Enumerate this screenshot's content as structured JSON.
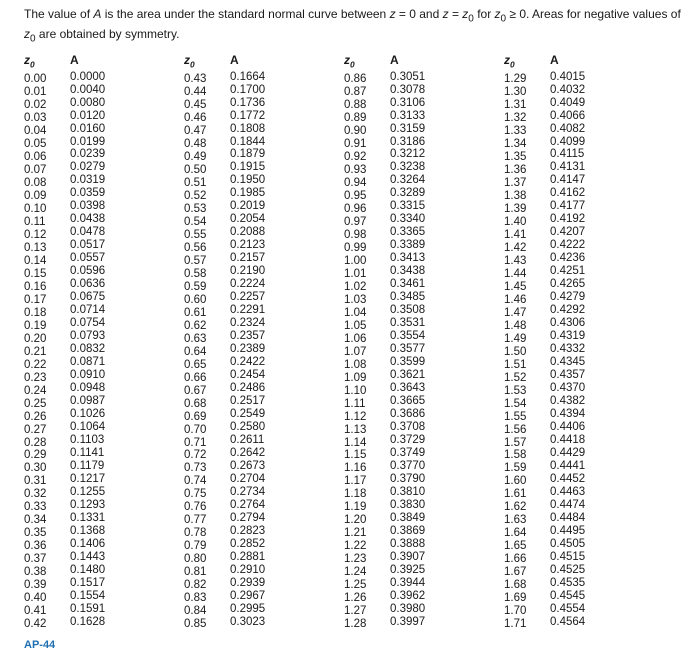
{
  "caption_html": "The value of <i>A</i> is the area under the standard normal curve between <i>z</i> = 0 and <i>z</i> = <i>z</i><sub>0</sub> for <i>z</i><sub>0</sub> ≥ 0. Areas for negative values of <i>z</i><sub>0</sub> are obtained by symmetry.",
  "header_z_html": "z<sub style=\"font-size:70%\">0</sub>",
  "header_A": "A",
  "footer": "AP-44",
  "columns": [
    [
      [
        "0.00",
        "0.0000"
      ],
      [
        "0.01",
        "0.0040"
      ],
      [
        "0.02",
        "0.0080"
      ],
      [
        "0.03",
        "0.0120"
      ],
      [
        "0.04",
        "0.0160"
      ],
      [
        "0.05",
        "0.0199"
      ],
      [
        "0.06",
        "0.0239"
      ],
      [
        "0.07",
        "0.0279"
      ],
      [
        "0.08",
        "0.0319"
      ],
      [
        "0.09",
        "0.0359"
      ],
      [
        "0.10",
        "0.0398"
      ],
      [
        "0.11",
        "0.0438"
      ],
      [
        "0.12",
        "0.0478"
      ],
      [
        "0.13",
        "0.0517"
      ],
      [
        "0.14",
        "0.0557"
      ],
      [
        "0.15",
        "0.0596"
      ],
      [
        "0.16",
        "0.0636"
      ],
      [
        "0.17",
        "0.0675"
      ],
      [
        "0.18",
        "0.0714"
      ],
      [
        "0.19",
        "0.0754"
      ],
      [
        "0.20",
        "0.0793"
      ],
      [
        "0.21",
        "0.0832"
      ],
      [
        "0.22",
        "0.0871"
      ],
      [
        "0.23",
        "0.0910"
      ],
      [
        "0.24",
        "0.0948"
      ],
      [
        "0.25",
        "0.0987"
      ],
      [
        "0.26",
        "0.1026"
      ],
      [
        "0.27",
        "0.1064"
      ],
      [
        "0.28",
        "0.1103"
      ],
      [
        "0.29",
        "0.1141"
      ],
      [
        "0.30",
        "0.1179"
      ],
      [
        "0.31",
        "0.1217"
      ],
      [
        "0.32",
        "0.1255"
      ],
      [
        "0.33",
        "0.1293"
      ],
      [
        "0.34",
        "0.1331"
      ],
      [
        "0.35",
        "0.1368"
      ],
      [
        "0.36",
        "0.1406"
      ],
      [
        "0.37",
        "0.1443"
      ],
      [
        "0.38",
        "0.1480"
      ],
      [
        "0.39",
        "0.1517"
      ],
      [
        "0.40",
        "0.1554"
      ],
      [
        "0.41",
        "0.1591"
      ],
      [
        "0.42",
        "0.1628"
      ]
    ],
    [
      [
        "0.43",
        "0.1664"
      ],
      [
        "0.44",
        "0.1700"
      ],
      [
        "0.45",
        "0.1736"
      ],
      [
        "0.46",
        "0.1772"
      ],
      [
        "0.47",
        "0.1808"
      ],
      [
        "0.48",
        "0.1844"
      ],
      [
        "0.49",
        "0.1879"
      ],
      [
        "0.50",
        "0.1915"
      ],
      [
        "0.51",
        "0.1950"
      ],
      [
        "0.52",
        "0.1985"
      ],
      [
        "0.53",
        "0.2019"
      ],
      [
        "0.54",
        "0.2054"
      ],
      [
        "0.55",
        "0.2088"
      ],
      [
        "0.56",
        "0.2123"
      ],
      [
        "0.57",
        "0.2157"
      ],
      [
        "0.58",
        "0.2190"
      ],
      [
        "0.59",
        "0.2224"
      ],
      [
        "0.60",
        "0.2257"
      ],
      [
        "0.61",
        "0.2291"
      ],
      [
        "0.62",
        "0.2324"
      ],
      [
        "0.63",
        "0.2357"
      ],
      [
        "0.64",
        "0.2389"
      ],
      [
        "0.65",
        "0.2422"
      ],
      [
        "0.66",
        "0.2454"
      ],
      [
        "0.67",
        "0.2486"
      ],
      [
        "0.68",
        "0.2517"
      ],
      [
        "0.69",
        "0.2549"
      ],
      [
        "0.70",
        "0.2580"
      ],
      [
        "0.71",
        "0.2611"
      ],
      [
        "0.72",
        "0.2642"
      ],
      [
        "0.73",
        "0.2673"
      ],
      [
        "0.74",
        "0.2704"
      ],
      [
        "0.75",
        "0.2734"
      ],
      [
        "0.76",
        "0.2764"
      ],
      [
        "0.77",
        "0.2794"
      ],
      [
        "0.78",
        "0.2823"
      ],
      [
        "0.79",
        "0.2852"
      ],
      [
        "0.80",
        "0.2881"
      ],
      [
        "0.81",
        "0.2910"
      ],
      [
        "0.82",
        "0.2939"
      ],
      [
        "0.83",
        "0.2967"
      ],
      [
        "0.84",
        "0.2995"
      ],
      [
        "0.85",
        "0.3023"
      ]
    ],
    [
      [
        "0.86",
        "0.3051"
      ],
      [
        "0.87",
        "0.3078"
      ],
      [
        "0.88",
        "0.3106"
      ],
      [
        "0.89",
        "0.3133"
      ],
      [
        "0.90",
        "0.3159"
      ],
      [
        "0.91",
        "0.3186"
      ],
      [
        "0.92",
        "0.3212"
      ],
      [
        "0.93",
        "0.3238"
      ],
      [
        "0.94",
        "0.3264"
      ],
      [
        "0.95",
        "0.3289"
      ],
      [
        "0.96",
        "0.3315"
      ],
      [
        "0.97",
        "0.3340"
      ],
      [
        "0.98",
        "0.3365"
      ],
      [
        "0.99",
        "0.3389"
      ],
      [
        "1.00",
        "0.3413"
      ],
      [
        "1.01",
        "0.3438"
      ],
      [
        "1.02",
        "0.3461"
      ],
      [
        "1.03",
        "0.3485"
      ],
      [
        "1.04",
        "0.3508"
      ],
      [
        "1.05",
        "0.3531"
      ],
      [
        "1.06",
        "0.3554"
      ],
      [
        "1.07",
        "0.3577"
      ],
      [
        "1.08",
        "0.3599"
      ],
      [
        "1.09",
        "0.3621"
      ],
      [
        "1.10",
        "0.3643"
      ],
      [
        "1.11",
        "0.3665"
      ],
      [
        "1.12",
        "0.3686"
      ],
      [
        "1.13",
        "0.3708"
      ],
      [
        "1.14",
        "0.3729"
      ],
      [
        "1.15",
        "0.3749"
      ],
      [
        "1.16",
        "0.3770"
      ],
      [
        "1.17",
        "0.3790"
      ],
      [
        "1.18",
        "0.3810"
      ],
      [
        "1.19",
        "0.3830"
      ],
      [
        "1.20",
        "0.3849"
      ],
      [
        "1.21",
        "0.3869"
      ],
      [
        "1.22",
        "0.3888"
      ],
      [
        "1.23",
        "0.3907"
      ],
      [
        "1.24",
        "0.3925"
      ],
      [
        "1.25",
        "0.3944"
      ],
      [
        "1.26",
        "0.3962"
      ],
      [
        "1.27",
        "0.3980"
      ],
      [
        "1.28",
        "0.3997"
      ]
    ],
    [
      [
        "1.29",
        "0.4015"
      ],
      [
        "1.30",
        "0.4032"
      ],
      [
        "1.31",
        "0.4049"
      ],
      [
        "1.32",
        "0.4066"
      ],
      [
        "1.33",
        "0.4082"
      ],
      [
        "1.34",
        "0.4099"
      ],
      [
        "1.35",
        "0.4115"
      ],
      [
        "1.36",
        "0.4131"
      ],
      [
        "1.37",
        "0.4147"
      ],
      [
        "1.38",
        "0.4162"
      ],
      [
        "1.39",
        "0.4177"
      ],
      [
        "1.40",
        "0.4192"
      ],
      [
        "1.41",
        "0.4207"
      ],
      [
        "1.42",
        "0.4222"
      ],
      [
        "1.43",
        "0.4236"
      ],
      [
        "1.44",
        "0.4251"
      ],
      [
        "1.45",
        "0.4265"
      ],
      [
        "1.46",
        "0.4279"
      ],
      [
        "1.47",
        "0.4292"
      ],
      [
        "1.48",
        "0.4306"
      ],
      [
        "1.49",
        "0.4319"
      ],
      [
        "1.50",
        "0.4332"
      ],
      [
        "1.51",
        "0.4345"
      ],
      [
        "1.52",
        "0.4357"
      ],
      [
        "1.53",
        "0.4370"
      ],
      [
        "1.54",
        "0.4382"
      ],
      [
        "1.55",
        "0.4394"
      ],
      [
        "1.56",
        "0.4406"
      ],
      [
        "1.57",
        "0.4418"
      ],
      [
        "1.58",
        "0.4429"
      ],
      [
        "1.59",
        "0.4441"
      ],
      [
        "1.60",
        "0.4452"
      ],
      [
        "1.61",
        "0.4463"
      ],
      [
        "1.62",
        "0.4474"
      ],
      [
        "1.63",
        "0.4484"
      ],
      [
        "1.64",
        "0.4495"
      ],
      [
        "1.65",
        "0.4505"
      ],
      [
        "1.66",
        "0.4515"
      ],
      [
        "1.67",
        "0.4525"
      ],
      [
        "1.68",
        "0.4535"
      ],
      [
        "1.69",
        "0.4545"
      ],
      [
        "1.70",
        "0.4554"
      ],
      [
        "1.71",
        "0.4564"
      ]
    ]
  ]
}
